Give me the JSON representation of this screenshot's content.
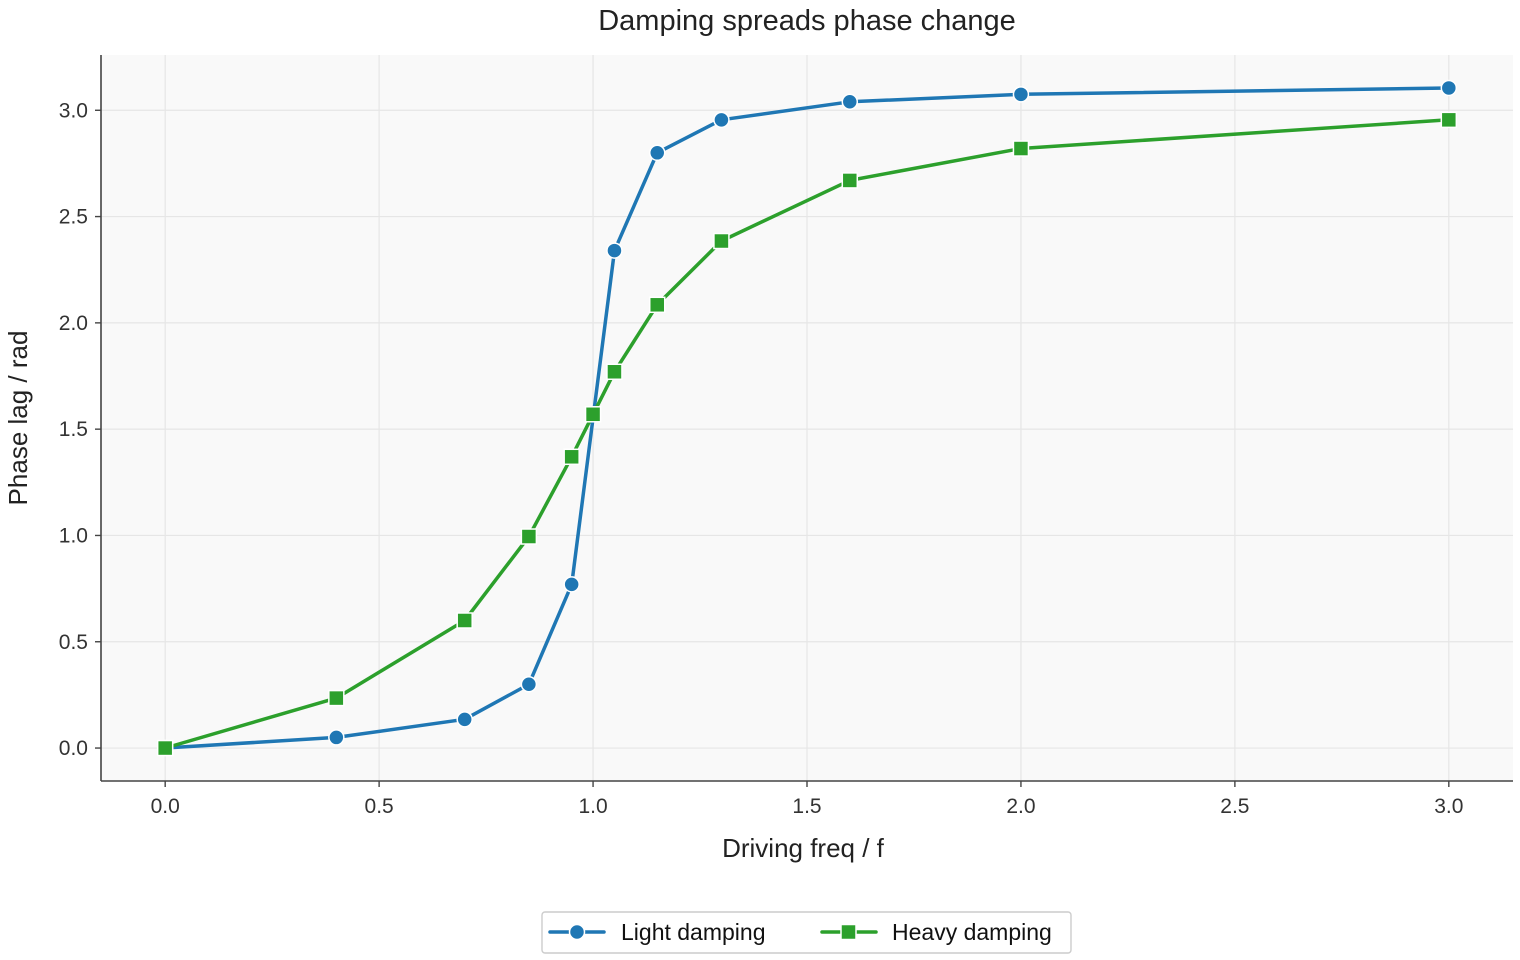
{
  "chart_data": {
    "type": "line",
    "title": "Damping spreads phase change",
    "xlabel": "Driving freq / f",
    "ylabel": "Phase lag / rad",
    "xlim": [
      -0.15,
      3.15
    ],
    "ylim": [
      -0.155,
      3.26
    ],
    "xticks": [
      0.0,
      0.5,
      1.0,
      1.5,
      2.0,
      2.5,
      3.0
    ],
    "xtick_labels": [
      "0.0",
      "0.5",
      "1.0",
      "1.5",
      "2.0",
      "2.5",
      "3.0"
    ],
    "yticks": [
      0.0,
      0.5,
      1.0,
      1.5,
      2.0,
      2.5,
      3.0
    ],
    "ytick_labels": [
      "0.0",
      "0.5",
      "1.0",
      "1.5",
      "2.0",
      "2.5",
      "3.0"
    ],
    "grid": true,
    "legend_position": "bottom-center",
    "series": [
      {
        "name": "Light damping",
        "color": "#1f77b4",
        "marker": "circle",
        "x": [
          0.0,
          0.4,
          0.7,
          0.85,
          0.95,
          1.05,
          1.15,
          1.3,
          1.6,
          2.0,
          3.0
        ],
        "y": [
          0.0,
          0.05,
          0.135,
          0.3,
          0.77,
          2.34,
          2.8,
          2.955,
          3.04,
          3.075,
          3.105
        ]
      },
      {
        "name": "Heavy damping",
        "color": "#2ca02c",
        "marker": "square",
        "x": [
          0.0,
          0.4,
          0.7,
          0.85,
          0.95,
          1.0,
          1.05,
          1.15,
          1.3,
          1.6,
          2.0,
          3.0
        ],
        "y": [
          0.0,
          0.235,
          0.6,
          0.995,
          1.37,
          1.57,
          1.77,
          2.085,
          2.385,
          2.67,
          2.82,
          2.955
        ]
      }
    ]
  }
}
